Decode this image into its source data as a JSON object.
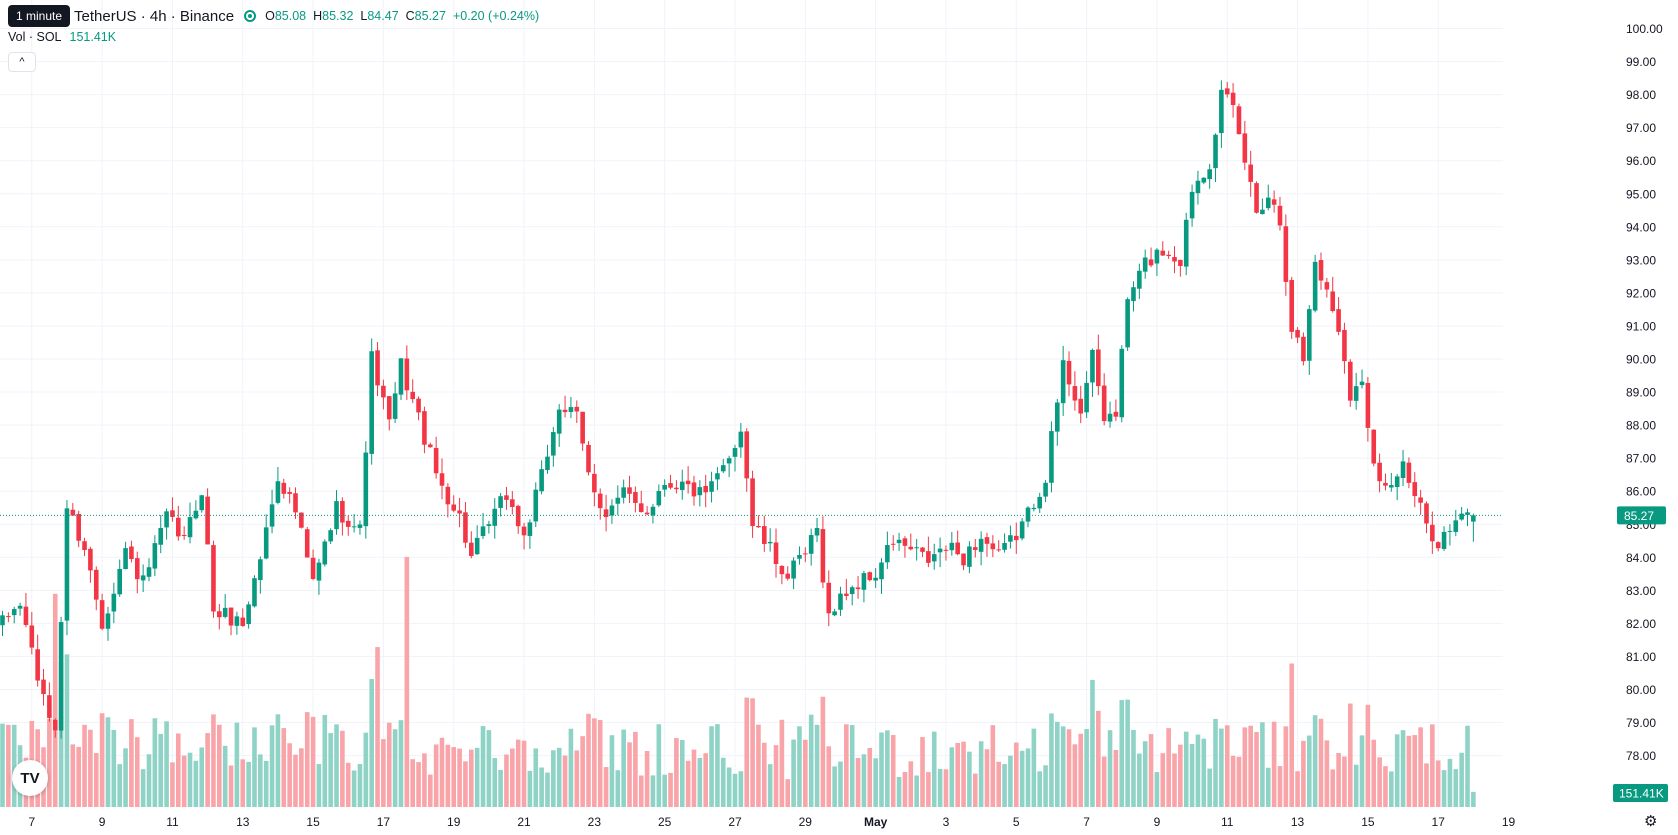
{
  "header": {
    "symbol": "TetherUS · 4h · Binance",
    "tooltip": "1 minute",
    "ohlc": {
      "o_label": "O",
      "o": "85.08",
      "h_label": "H",
      "h": "85.32",
      "l_label": "L",
      "l": "84.47",
      "c_label": "C",
      "c": "85.27",
      "change": "+0.20 (+0.24%)"
    }
  },
  "volume_legend": {
    "label": "Vol · SOL",
    "value": "151.41K"
  },
  "collapse_glyph": "^",
  "logo_text": "TV",
  "gear_glyph": "⚙",
  "colors": {
    "up": "#089981",
    "down": "#f23645",
    "up_vol": "#8fd3c7",
    "down_vol": "#f8a4a9",
    "grid": "#f0f3fa",
    "text": "#131722"
  },
  "chart_data": {
    "type": "candlestick",
    "interval": "4h",
    "y_axis": {
      "min": 77,
      "max": 100,
      "ticks": [
        78,
        79,
        80,
        81,
        82,
        83,
        84,
        85,
        86,
        87,
        88,
        89,
        90,
        91,
        92,
        93,
        94,
        95,
        96,
        97,
        98,
        99,
        100
      ]
    },
    "x_ticks": [
      {
        "label": "7",
        "index": 5
      },
      {
        "label": "9",
        "index": 17
      },
      {
        "label": "11",
        "index": 29
      },
      {
        "label": "13",
        "index": 41
      },
      {
        "label": "15",
        "index": 53
      },
      {
        "label": "17",
        "index": 65
      },
      {
        "label": "19",
        "index": 77
      },
      {
        "label": "21",
        "index": 89
      },
      {
        "label": "23",
        "index": 101
      },
      {
        "label": "25",
        "index": 113
      },
      {
        "label": "27",
        "index": 125
      },
      {
        "label": "29",
        "index": 137
      },
      {
        "label": "May",
        "index": 149,
        "bold": true
      },
      {
        "label": "3",
        "index": 161
      },
      {
        "label": "5",
        "index": 173
      },
      {
        "label": "7",
        "index": 185
      },
      {
        "label": "9",
        "index": 197
      },
      {
        "label": "11",
        "index": 209
      },
      {
        "label": "13",
        "index": 221
      },
      {
        "label": "15",
        "index": 233
      },
      {
        "label": "17",
        "index": 245
      },
      {
        "label": "19",
        "index": 257
      }
    ],
    "last_price": "85.27",
    "last_volume": "151.41K",
    "anchors": [
      [
        0,
        82.0
      ],
      [
        3,
        82.6
      ],
      [
        5,
        81.2
      ],
      [
        7,
        79.6
      ],
      [
        9,
        78.8
      ],
      [
        11,
        85.5
      ],
      [
        14,
        84.3
      ],
      [
        17,
        82.0
      ],
      [
        21,
        84.2
      ],
      [
        24,
        83.2
      ],
      [
        28,
        85.2
      ],
      [
        31,
        84.5
      ],
      [
        34,
        86.1
      ],
      [
        36,
        82.4
      ],
      [
        41,
        82.0
      ],
      [
        44,
        84.0
      ],
      [
        47,
        86.5
      ],
      [
        50,
        85.4
      ],
      [
        53,
        83.2
      ],
      [
        57,
        85.5
      ],
      [
        61,
        84.8
      ],
      [
        63,
        90.0
      ],
      [
        66,
        88.0
      ],
      [
        68,
        89.8
      ],
      [
        71,
        88.2
      ],
      [
        74,
        86.5
      ],
      [
        78,
        85.2
      ],
      [
        80,
        84.0
      ],
      [
        83,
        85.0
      ],
      [
        86,
        85.9
      ],
      [
        89,
        84.6
      ],
      [
        92,
        86.4
      ],
      [
        95,
        88.6
      ],
      [
        98,
        88.2
      ],
      [
        100,
        86.5
      ],
      [
        103,
        85.3
      ],
      [
        106,
        85.9
      ],
      [
        110,
        85.4
      ],
      [
        113,
        86.3
      ],
      [
        116,
        86.2
      ],
      [
        120,
        85.8
      ],
      [
        123,
        86.7
      ],
      [
        126,
        87.9
      ],
      [
        128,
        85.0
      ],
      [
        131,
        84.2
      ],
      [
        134,
        83.4
      ],
      [
        137,
        84.1
      ],
      [
        139,
        84.8
      ],
      [
        141,
        82.2
      ],
      [
        144,
        83.0
      ],
      [
        149,
        83.5
      ],
      [
        152,
        84.5
      ],
      [
        155,
        84.2
      ],
      [
        158,
        83.9
      ],
      [
        161,
        84.3
      ],
      [
        164,
        84.0
      ],
      [
        167,
        84.6
      ],
      [
        170,
        84.0
      ],
      [
        173,
        84.7
      ],
      [
        175,
        85.3
      ],
      [
        178,
        86.5
      ],
      [
        181,
        89.8
      ],
      [
        184,
        88.5
      ],
      [
        186,
        90.0
      ],
      [
        188,
        88.2
      ],
      [
        190,
        88.4
      ],
      [
        192,
        91.8
      ],
      [
        195,
        92.9
      ],
      [
        198,
        93.3
      ],
      [
        201,
        93.0
      ],
      [
        203,
        95.2
      ],
      [
        206,
        96.0
      ],
      [
        208,
        98.0
      ],
      [
        210,
        97.5
      ],
      [
        212,
        96.0
      ],
      [
        214,
        94.5
      ],
      [
        216,
        95.0
      ],
      [
        218,
        94.2
      ],
      [
        220,
        91.0
      ],
      [
        222,
        90.0
      ],
      [
        224,
        93.0
      ],
      [
        226,
        92.0
      ],
      [
        228,
        91.0
      ],
      [
        230,
        89.0
      ],
      [
        232,
        89.2
      ],
      [
        234,
        87.0
      ],
      [
        236,
        86.1
      ],
      [
        239,
        86.7
      ],
      [
        241,
        85.8
      ],
      [
        243,
        85.0
      ],
      [
        245,
        84.5
      ],
      [
        248,
        85.0
      ],
      [
        250,
        85.3
      ],
      [
        251,
        85.2
      ]
    ],
    "volume_range": [
      0,
      5000
    ],
    "volume_notes": {
      "spikes": [
        [
          9,
          2600
        ],
        [
          64,
          1950
        ],
        [
          69,
          3050
        ],
        [
          220,
          1750
        ],
        [
          186,
          1550
        ]
      ]
    },
    "volume": {
      "last": 151410
    }
  }
}
